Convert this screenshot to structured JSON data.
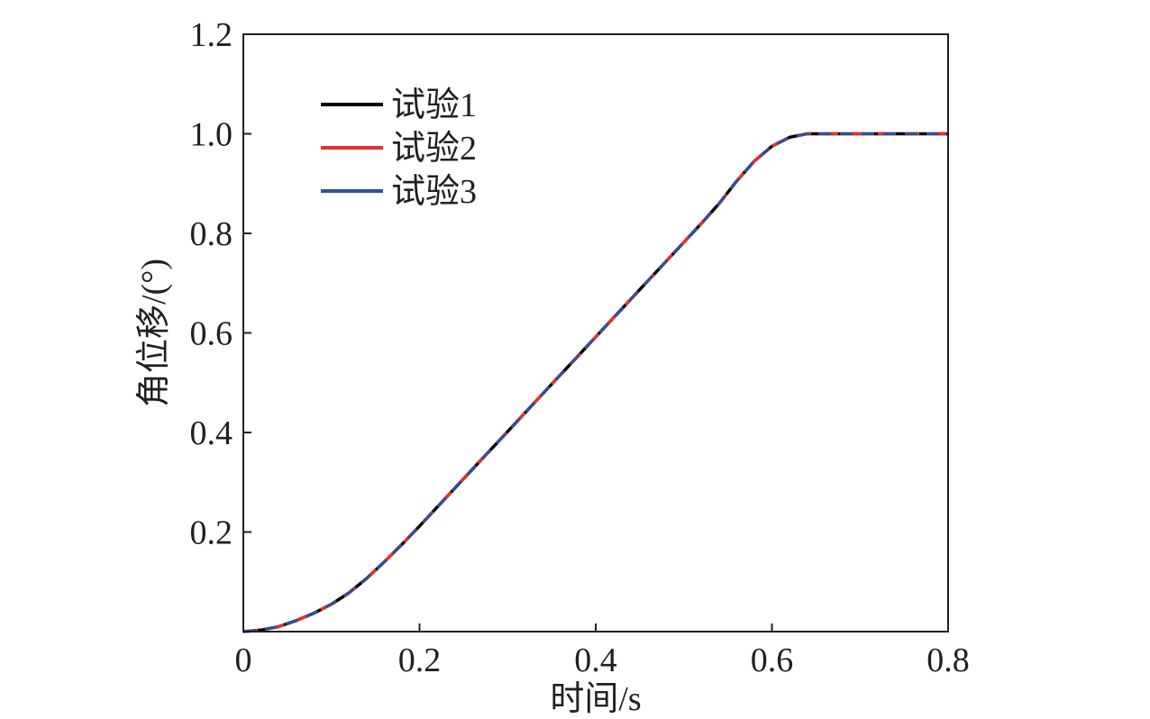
{
  "chart_data": {
    "type": "line",
    "title": "",
    "xlabel": "时间/s",
    "ylabel": "角位移/(°)",
    "xlim": [
      0,
      0.8
    ],
    "ylim": [
      0,
      1.2
    ],
    "x_ticks": [
      0,
      0.2,
      0.4,
      0.6,
      0.8
    ],
    "x_tick_labels": [
      "0",
      "0.2",
      "0.4",
      "0.6",
      "0.8"
    ],
    "y_ticks": [
      0.2,
      0.4,
      0.6,
      0.8,
      1.0,
      1.2
    ],
    "y_tick_labels": [
      "0.2",
      "0.4",
      "0.6",
      "0.8",
      "1.0",
      "1.2"
    ],
    "grid": false,
    "legend_position": "top-left",
    "x": [
      0,
      0.02,
      0.04,
      0.06,
      0.08,
      0.1,
      0.12,
      0.14,
      0.16,
      0.18,
      0.2,
      0.22,
      0.24,
      0.26,
      0.28,
      0.3,
      0.32,
      0.34,
      0.36,
      0.38,
      0.4,
      0.42,
      0.44,
      0.46,
      0.48,
      0.5,
      0.52,
      0.54,
      0.56,
      0.58,
      0.6,
      0.62,
      0.64,
      0.66,
      0.68,
      0.7,
      0.72,
      0.74,
      0.76,
      0.78,
      0.8
    ],
    "series": [
      {
        "name": "试验1",
        "color": "#000000",
        "values": [
          0,
          0.003,
          0.01,
          0.022,
          0.037,
          0.055,
          0.078,
          0.107,
          0.14,
          0.175,
          0.212,
          0.25,
          0.288,
          0.326,
          0.364,
          0.402,
          0.44,
          0.478,
          0.516,
          0.554,
          0.592,
          0.63,
          0.668,
          0.706,
          0.744,
          0.782,
          0.82,
          0.86,
          0.905,
          0.945,
          0.975,
          0.993,
          1.0,
          1.0,
          1.0,
          1.0,
          1.0,
          1.0,
          1.0,
          1.0,
          1.0
        ]
      },
      {
        "name": "试验2",
        "color": "#e8312a",
        "values": [
          0,
          0.003,
          0.01,
          0.022,
          0.037,
          0.055,
          0.078,
          0.107,
          0.14,
          0.175,
          0.212,
          0.25,
          0.288,
          0.326,
          0.364,
          0.402,
          0.44,
          0.478,
          0.516,
          0.554,
          0.592,
          0.63,
          0.668,
          0.706,
          0.744,
          0.782,
          0.82,
          0.86,
          0.905,
          0.945,
          0.975,
          0.993,
          1.0,
          1.0,
          1.0,
          1.0,
          1.0,
          1.0,
          1.0,
          1.0,
          1.0
        ]
      },
      {
        "name": "试验3",
        "color": "#2f4f9f",
        "values": [
          0,
          0.003,
          0.01,
          0.022,
          0.037,
          0.055,
          0.078,
          0.107,
          0.14,
          0.175,
          0.212,
          0.25,
          0.288,
          0.326,
          0.364,
          0.402,
          0.44,
          0.478,
          0.516,
          0.554,
          0.592,
          0.63,
          0.668,
          0.706,
          0.744,
          0.782,
          0.82,
          0.86,
          0.905,
          0.945,
          0.975,
          0.993,
          1.0,
          1.0,
          1.0,
          1.0,
          1.0,
          1.0,
          1.0,
          1.0,
          1.0
        ]
      }
    ]
  }
}
